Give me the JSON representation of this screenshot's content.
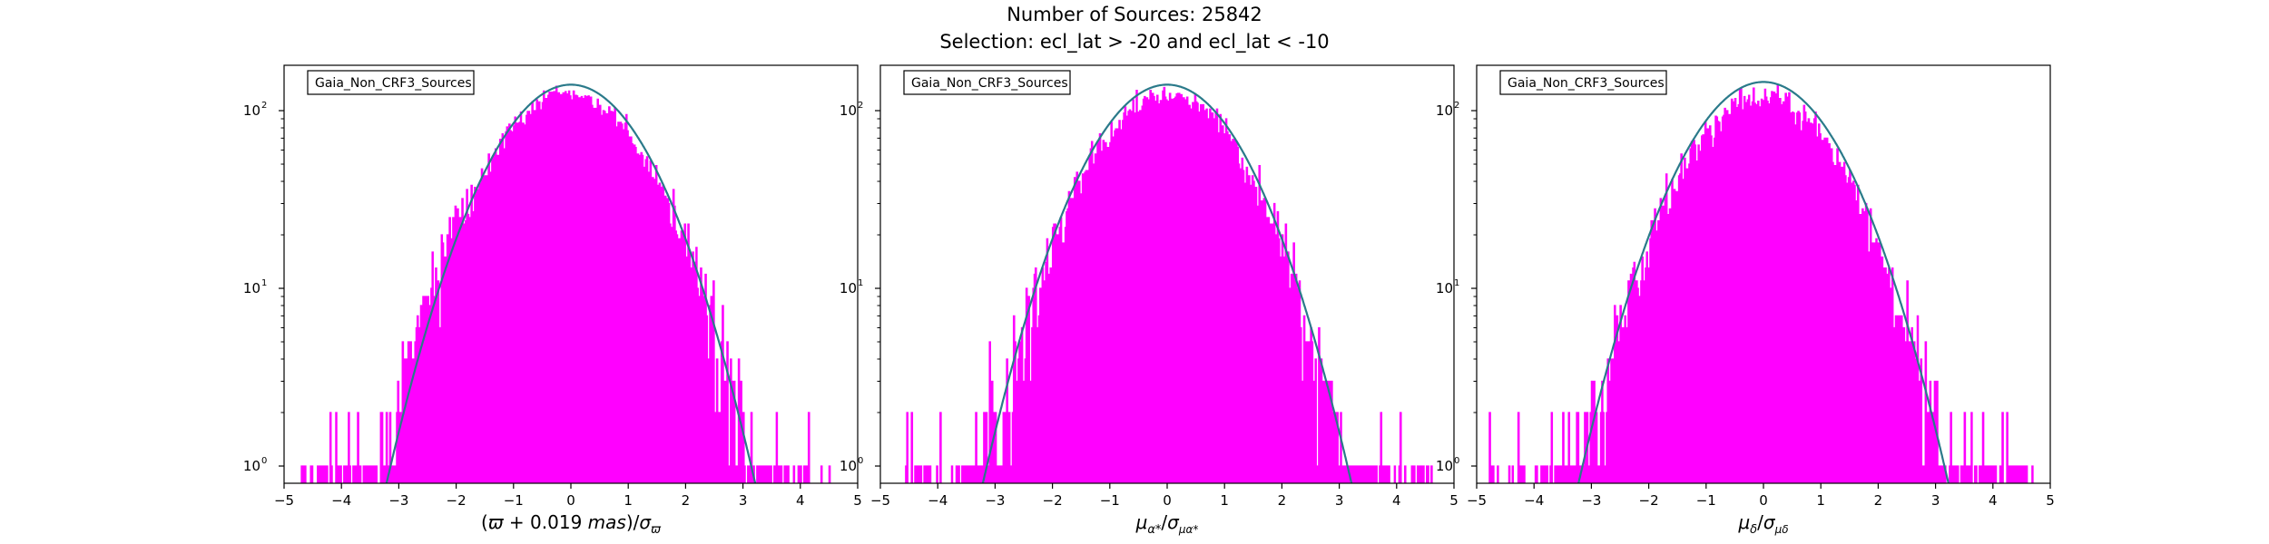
{
  "figure": {
    "title_line1": "Number of Sources: 25842",
    "title_line2": "Selection: ecl_lat > -20 and ecl_lat < -10"
  },
  "colors": {
    "histogram": "#ff00ff",
    "fit_curve": "#2a7a8a",
    "axes": "#000000",
    "background": "#ffffff"
  },
  "chart_data": [
    {
      "type": "histogram",
      "legend": "Gaia_Non_CRF3_Sources",
      "xlabel_parts": [
        "(",
        "ϖ",
        " + 0.019 ",
        "mas",
        ")/",
        "σ",
        "ϖ",
        ""
      ],
      "ylabel": "",
      "xlim": [
        -5,
        5
      ],
      "ylim": [
        0.8,
        180
      ],
      "yscale": "log",
      "xticks": [
        "−5",
        "−4",
        "−3",
        "−2",
        "−1",
        "0",
        "1",
        "2",
        "3",
        "4",
        "5"
      ],
      "yticks": [
        {
          "label": "10",
          "exp": "0",
          "value": 1
        },
        {
          "label": "10",
          "exp": "1",
          "value": 10
        },
        {
          "label": "10",
          "exp": "2",
          "value": 100
        }
      ],
      "histogram": {
        "range": [
          -4.7,
          4.5
        ],
        "peak": 120,
        "center": -0.05,
        "sigma": 1.02,
        "seed": 11
      },
      "fit": {
        "peak": 140,
        "center": 0.0,
        "sigma": 1.0
      },
      "grid": false,
      "legend_position": "top-left"
    },
    {
      "type": "histogram",
      "legend": "Gaia_Non_CRF3_Sources",
      "xlabel_parts": [
        "",
        "μ",
        "α*",
        "/",
        "σ",
        "μα*",
        ""
      ],
      "ylabel": "",
      "xlim": [
        -5,
        5
      ],
      "ylim": [
        0.8,
        180
      ],
      "yscale": "log",
      "xticks": [
        "−5",
        "−4",
        "−3",
        "−2",
        "−1",
        "0",
        "1",
        "2",
        "3",
        "4",
        "5"
      ],
      "yticks": [
        {
          "label": "10",
          "exp": "0",
          "value": 1
        },
        {
          "label": "10",
          "exp": "1",
          "value": 10
        },
        {
          "label": "10",
          "exp": "2",
          "value": 100
        }
      ],
      "histogram": {
        "range": [
          -4.7,
          4.6
        ],
        "peak": 118,
        "center": 0.0,
        "sigma": 1.0,
        "seed": 23
      },
      "fit": {
        "peak": 140,
        "center": 0.0,
        "sigma": 1.0
      },
      "grid": false,
      "legend_position": "top-left"
    },
    {
      "type": "histogram",
      "legend": "Gaia_Non_CRF3_Sources",
      "xlabel_parts": [
        "",
        "μ",
        "δ",
        "/",
        "σ",
        "μδ",
        ""
      ],
      "ylabel": "",
      "xlim": [
        -5,
        5
      ],
      "ylim": [
        0.8,
        180
      ],
      "yscale": "log",
      "xticks": [
        "−5",
        "−4",
        "−3",
        "−2",
        "−1",
        "0",
        "1",
        "2",
        "3",
        "4",
        "5"
      ],
      "yticks": [
        {
          "label": "10",
          "exp": "0",
          "value": 1
        },
        {
          "label": "10",
          "exp": "1",
          "value": 10
        },
        {
          "label": "10",
          "exp": "2",
          "value": 100
        }
      ],
      "histogram": {
        "range": [
          -4.8,
          4.8
        ],
        "peak": 118,
        "center": 0.0,
        "sigma": 1.0,
        "seed": 37
      },
      "fit": {
        "peak": 145,
        "center": 0.0,
        "sigma": 1.0
      },
      "grid": false,
      "legend_position": "top-left"
    }
  ]
}
